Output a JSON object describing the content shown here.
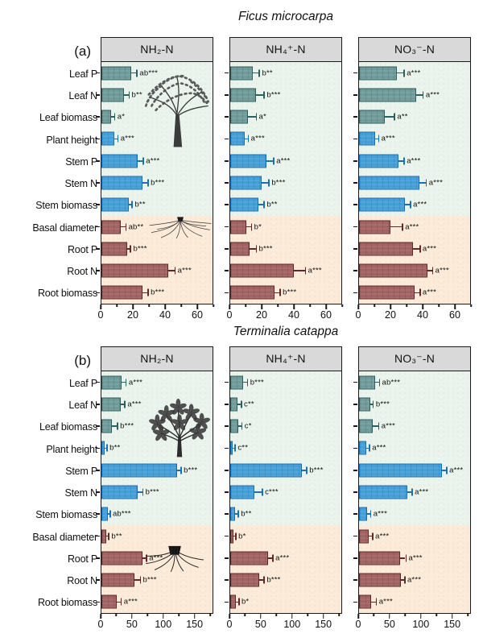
{
  "chart_data": [
    {
      "type": "bar",
      "orientation": "horizontal",
      "panel_label": "(a)",
      "title": "Ficus microcarpa",
      "categories": [
        "Leaf P",
        "Leaf N",
        "Leaf biomass",
        "Plant height",
        "Stem P",
        "Stem N",
        "Stem biomass",
        "Basal diameter",
        "Root P",
        "Root N",
        "Root biomass"
      ],
      "group_of_row": [
        "leaf",
        "leaf",
        "leaf",
        "stem",
        "stem",
        "stem",
        "stem",
        "root",
        "root",
        "root",
        "root"
      ],
      "background_split_row": 7,
      "xlim": [
        0,
        70
      ],
      "xticks": [
        0,
        20,
        40,
        60
      ],
      "xticks_minor": [
        10,
        30,
        50,
        70
      ],
      "subplots": [
        {
          "header": "NH₂-N",
          "values": [
            19,
            14,
            6,
            8,
            23,
            26,
            17,
            12,
            16,
            42,
            26
          ],
          "errors": [
            3,
            3,
            2,
            2,
            3,
            3,
            2,
            3,
            2,
            4,
            3
          ],
          "sig_labels": [
            "ab***",
            "b**",
            "a*",
            "a***",
            "a***",
            "b***",
            "b**",
            "ab**",
            "b***",
            "a***",
            "b***"
          ]
        },
        {
          "header": "NH₄⁺-N",
          "values": [
            14,
            16,
            11,
            9,
            23,
            20,
            18,
            10,
            12,
            40,
            28
          ],
          "errors": [
            4,
            5,
            5,
            2,
            4,
            4,
            3,
            3,
            4,
            7,
            3
          ],
          "sig_labels": [
            "b**",
            "b***",
            "a*",
            "a***",
            "a***",
            "b***",
            "b**",
            "b*",
            "b***",
            "a***",
            "b***"
          ]
        },
        {
          "header": "NO₃⁻-N",
          "values": [
            24,
            36,
            16,
            10,
            25,
            38,
            29,
            20,
            34,
            43,
            35
          ],
          "errors": [
            4,
            4,
            6,
            2,
            3,
            4,
            3,
            7,
            4,
            3,
            3
          ],
          "sig_labels": [
            "a***",
            "a***",
            "a**",
            "a***",
            "a***",
            "a***",
            "a***",
            "a***",
            "a***",
            "a***",
            "a***"
          ]
        }
      ]
    },
    {
      "type": "bar",
      "orientation": "horizontal",
      "panel_label": "(b)",
      "title": "Terminalia catappa",
      "categories": [
        "Leaf P",
        "Leaf N",
        "Leaf biomass",
        "Plant height",
        "Stem P",
        "Stem N",
        "Stem biomass",
        "Basal diameter",
        "Root P",
        "Root N",
        "Root biomass"
      ],
      "group_of_row": [
        "leaf",
        "leaf",
        "leaf",
        "stem",
        "stem",
        "stem",
        "stem",
        "root",
        "root",
        "root",
        "root"
      ],
      "background_split_row": 7,
      "xlim": [
        0,
        180
      ],
      "xticks": [
        0,
        50,
        100,
        150
      ],
      "xticks_minor": [
        25,
        75,
        125,
        175
      ],
      "subplots": [
        {
          "header": "NH₂-N",
          "values": [
            33,
            31,
            17,
            5,
            122,
            59,
            10,
            8,
            66,
            53,
            25
          ],
          "errors": [
            6,
            6,
            8,
            3,
            6,
            7,
            3,
            3,
            6,
            9,
            6
          ],
          "sig_labels": [
            "a***",
            "a***",
            "b***",
            "b**",
            "b***",
            "b***",
            "ab***",
            "b**",
            "a***",
            "b***",
            "a***"
          ]
        },
        {
          "header": "NH₄⁺-N",
          "values": [
            21,
            12,
            13,
            4,
            116,
            39,
            8,
            5,
            61,
            47,
            9
          ],
          "errors": [
            6,
            5,
            5,
            3,
            7,
            12,
            4,
            3,
            7,
            7,
            4
          ],
          "sig_labels": [
            "b***",
            "c**",
            "c*",
            "c**",
            "b***",
            "c***",
            "b**",
            "b*",
            "a***",
            "b***",
            "b*"
          ]
        },
        {
          "header": "NO₃⁻-N",
          "values": [
            26,
            18,
            22,
            12,
            134,
            78,
            13,
            16,
            66,
            68,
            20
          ],
          "errors": [
            6,
            4,
            9,
            4,
            7,
            7,
            5,
            5,
            9,
            5,
            7
          ],
          "sig_labels": [
            "ab***",
            "b***",
            "a***",
            "a***",
            "a***",
            "a***",
            "a***",
            "a***",
            "a***",
            "a***",
            "a***"
          ]
        }
      ]
    }
  ],
  "colors": {
    "leaf_fill": "#6f9b9a",
    "leaf_edge": "#2e5f5f",
    "stem_fill": "#45a0d8",
    "stem_edge": "#1e6fae",
    "root_fill": "#a26363",
    "root_edge": "#60282a",
    "bg_upper": "#eaf3ec",
    "bg_lower": "#fcebd9",
    "header_bg": "#d9d9d9",
    "frame": "#1a1a1a"
  },
  "icons": {
    "panel_a_canopy": "ficus-tree-illustration",
    "panel_a_roots": "fibrous-root-illustration",
    "panel_b_canopy": "catappa-tree-illustration",
    "panel_b_roots": "stump-root-illustration"
  }
}
